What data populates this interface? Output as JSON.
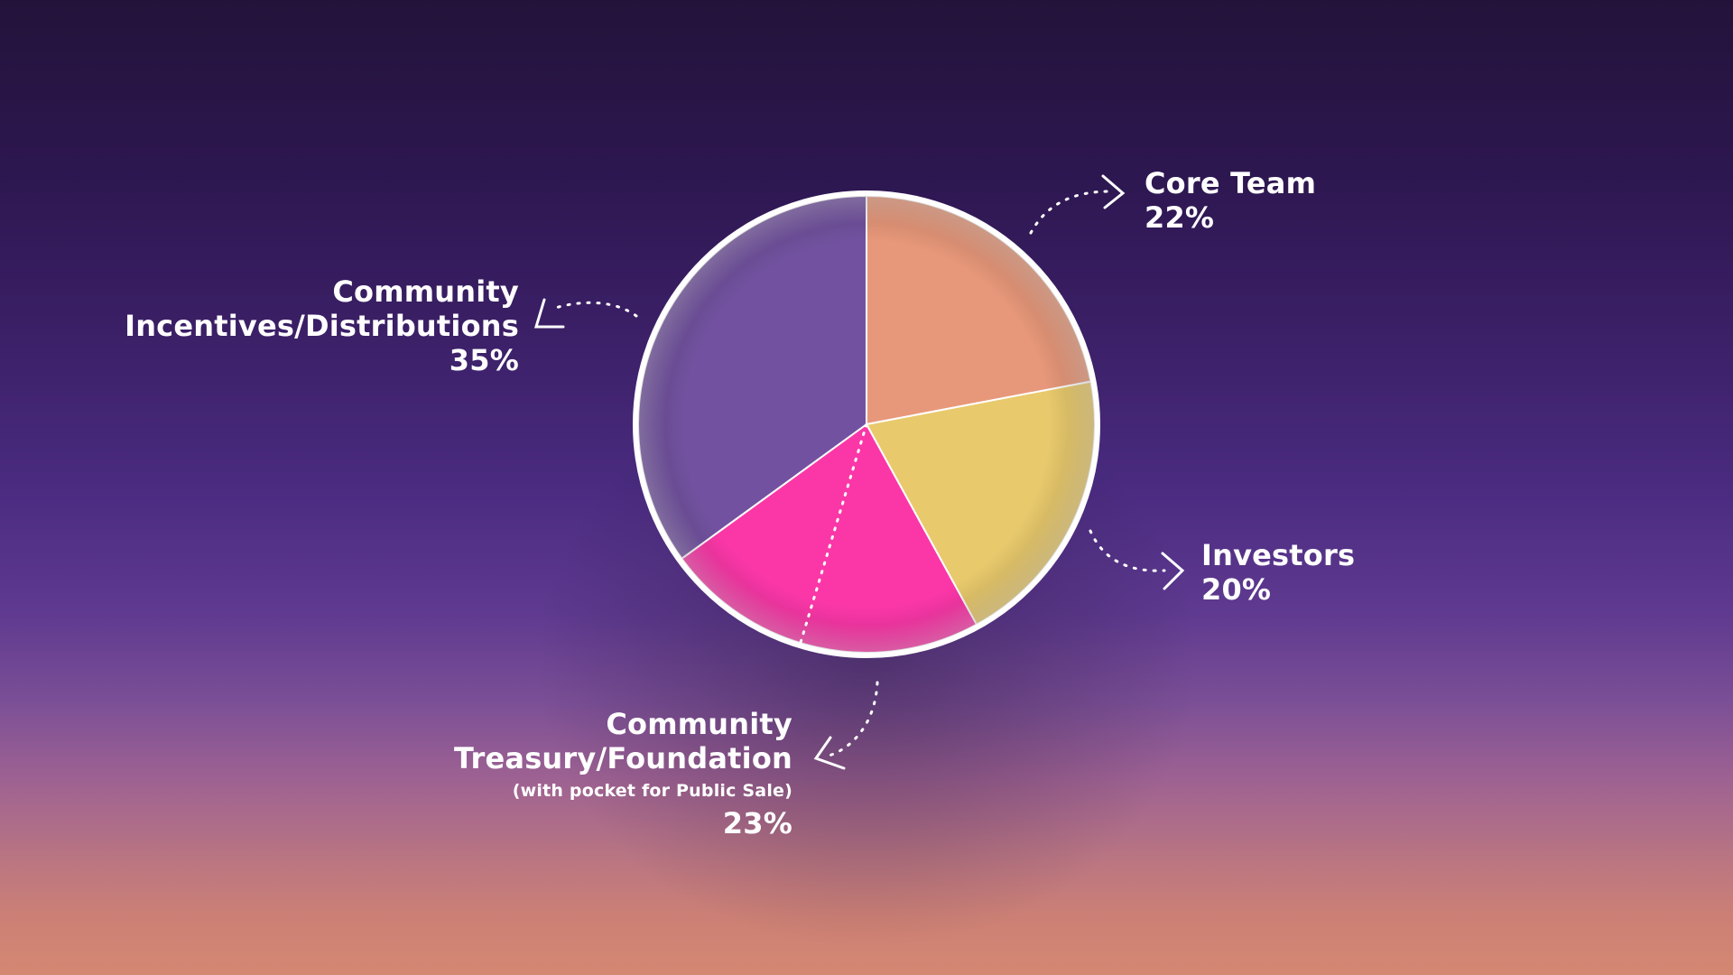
{
  "chart_data": {
    "type": "pie",
    "slices": [
      {
        "label": "Core Team",
        "value": 22,
        "value_label": "22%",
        "color": "#e8987a"
      },
      {
        "label": "Investors",
        "value": 20,
        "value_label": "20%",
        "color": "#e8c96c"
      },
      {
        "label": "Community Treasury/Foundation",
        "value": 23,
        "value_label": "23%",
        "color": "#fb37a8",
        "note": "(with pocket for Public Sale)"
      },
      {
        "label": "Community Incentives/Distributions",
        "value": 35,
        "value_label": "35%",
        "color": "#7252a0"
      }
    ]
  },
  "labels": {
    "core_team": {
      "title": "Core Team",
      "pct": "22%"
    },
    "investors": {
      "title": "Investors",
      "pct": "20%"
    },
    "treasury": {
      "title_1": "Community",
      "title_2": "Treasury/Foundation",
      "note": "(with pocket for Public Sale)",
      "pct": "23%"
    },
    "incentives": {
      "title_1": "Community",
      "title_2": "Incentives/Distributions",
      "pct": "35%"
    }
  },
  "colors": {
    "background_top": "#23133a",
    "background_bottom": "#d48872",
    "text": "#ffffff",
    "pie_border": "#ffffff"
  }
}
